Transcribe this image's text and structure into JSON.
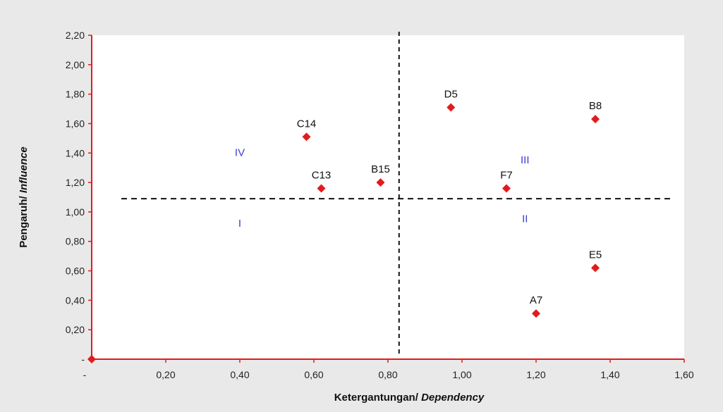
{
  "chart_data": {
    "type": "scatter",
    "xlabel": "Ketergantungan/ ",
    "xlabel_italic": "Dependency",
    "ylabel": "Pengaruh/ ",
    "ylabel_italic": "Influence",
    "xlim": [
      0,
      1.6
    ],
    "ylim": [
      0,
      2.2
    ],
    "x_ticks": [
      "-",
      "0,20",
      "0,40",
      "0,60",
      "0,80",
      "1,00",
      "1,20",
      "1,40",
      "1,60"
    ],
    "y_ticks": [
      "-",
      "0,20",
      "0,40",
      "0,60",
      "0,80",
      "1,00",
      "1,20",
      "1,40",
      "1,60",
      "1,80",
      "2,00",
      "2,20"
    ],
    "points": [
      {
        "label": "C14",
        "x": 0.58,
        "y": 1.51
      },
      {
        "label": "C13",
        "x": 0.62,
        "y": 1.16
      },
      {
        "label": "B15",
        "x": 0.78,
        "y": 1.2
      },
      {
        "label": "D5",
        "x": 0.97,
        "y": 1.71
      },
      {
        "label": "B8",
        "x": 1.36,
        "y": 1.63
      },
      {
        "label": "F7",
        "x": 1.12,
        "y": 1.16
      },
      {
        "label": "E5",
        "x": 1.36,
        "y": 0.62
      },
      {
        "label": "A7",
        "x": 1.2,
        "y": 0.31
      },
      {
        "label": "",
        "x": 0.0,
        "y": 0.0
      }
    ],
    "divider_x": 0.83,
    "divider_y": 1.09,
    "quadrants": [
      {
        "label": "IV",
        "x": 0.4,
        "y": 1.38
      },
      {
        "label": "III",
        "x": 1.17,
        "y": 1.33
      },
      {
        "label": "I",
        "x": 0.4,
        "y": 0.9
      },
      {
        "label": "II",
        "x": 1.17,
        "y": 0.93
      }
    ],
    "marker_color": "#e31a1c",
    "axis_color": "#e31a1c",
    "quadrant_color": "#3b3bd6",
    "grid": false
  }
}
